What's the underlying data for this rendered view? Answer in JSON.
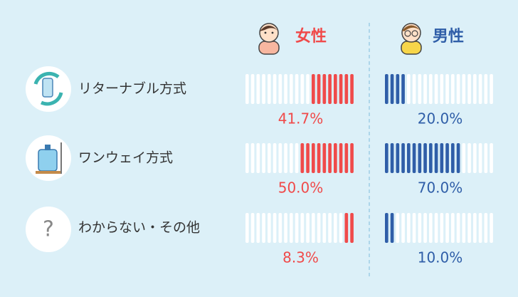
{
  "chart_data": {
    "type": "segmented-bar",
    "categories": [
      "リターナブル方式",
      "ワンウェイ方式",
      "わからない・その他"
    ],
    "xlim": [
      0,
      100
    ],
    "series": [
      {
        "name": "女性",
        "color": "#f04a4a",
        "values": [
          41.7,
          50.0,
          8.3
        ],
        "value_labels": [
          "41.7%",
          "50.0%",
          "8.3%"
        ]
      },
      {
        "name": "男性",
        "color": "#2f5ea8",
        "values": [
          20.0,
          70.0,
          10.0
        ],
        "value_labels": [
          "20.0%",
          "70.0%",
          "10.0%"
        ]
      }
    ]
  }
}
